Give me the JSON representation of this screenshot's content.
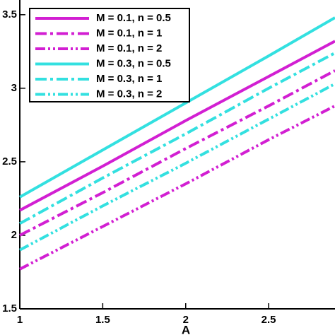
{
  "chart_data": {
    "type": "line",
    "x_label": "A",
    "x": [
      1,
      1.5,
      2,
      2.5,
      2.9
    ],
    "xlim": [
      1,
      2.9
    ],
    "xticks": [
      1,
      1.5,
      2,
      2.5
    ],
    "ylim": [
      1.5,
      3.6
    ],
    "yticks": [
      1.5,
      2,
      2.5,
      3,
      3.5
    ],
    "legend": "upper left",
    "series": [
      {
        "name": "M = 0.1, n = 0.5",
        "color": "#d21fd2",
        "dash": "solid",
        "values": [
          2.17,
          2.47,
          2.78,
          3.08,
          3.32
        ]
      },
      {
        "name": "M = 0.1, n = 1",
        "color": "#d21fd2",
        "dash": "dashdot",
        "values": [
          2.0,
          2.29,
          2.59,
          2.88,
          3.12
        ]
      },
      {
        "name": "M = 0.1, n = 2",
        "color": "#d21fd2",
        "dash": "dashdotdot",
        "values": [
          1.77,
          2.06,
          2.35,
          2.65,
          2.88
        ]
      },
      {
        "name": "M = 0.3, n = 0.5",
        "color": "#33e0e0",
        "dash": "solid",
        "values": [
          2.26,
          2.58,
          2.9,
          3.22,
          3.48
        ]
      },
      {
        "name": "M = 0.3, n = 1",
        "color": "#33e0e0",
        "dash": "dashdot",
        "values": [
          2.08,
          2.39,
          2.69,
          3.0,
          3.24
        ]
      },
      {
        "name": "M = 0.3, n = 2",
        "color": "#33e0e0",
        "dash": "dashdotdot",
        "values": [
          1.9,
          2.2,
          2.49,
          2.79,
          3.03
        ]
      }
    ]
  }
}
